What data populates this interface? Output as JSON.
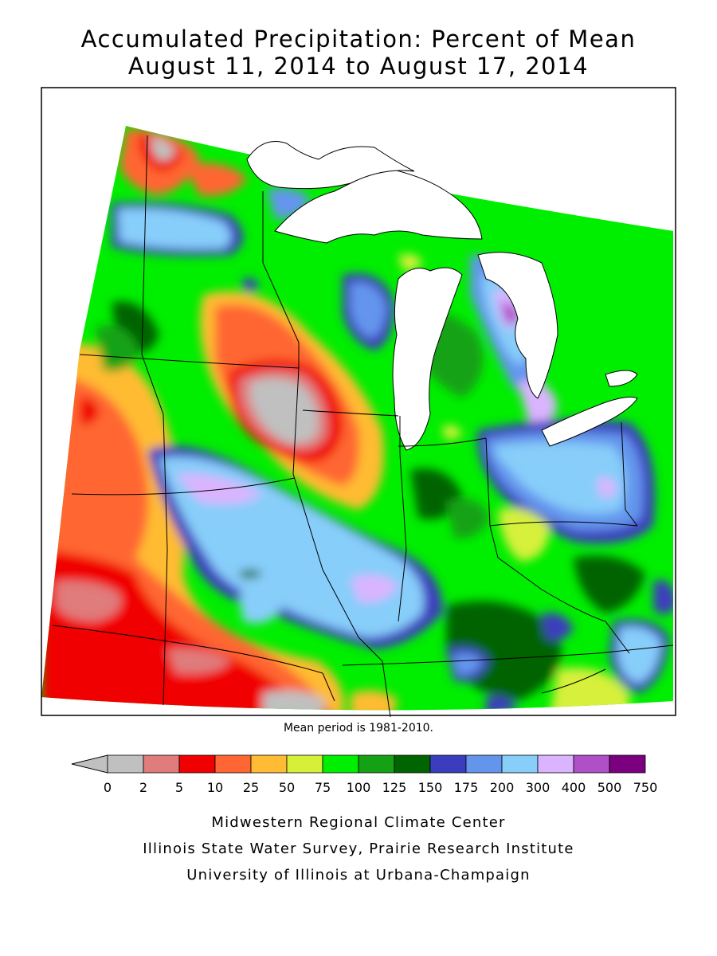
{
  "title": {
    "line1": "Accumulated Precipitation: Percent of Mean",
    "line2": "August 11, 2014 to August 17, 2014"
  },
  "mean_note": "Mean period is 1981-2010.",
  "legend": {
    "colors": [
      "#c0c0c0",
      "#e07c7c",
      "#f00000",
      "#ff6633",
      "#ffbb33",
      "#d6f03a",
      "#00ee00",
      "#14a214",
      "#006400",
      "#3c3cbe",
      "#6495ed",
      "#87cefa",
      "#dab4ff",
      "#b050c8",
      "#7a0080"
    ],
    "tick_labels": [
      "0",
      "2",
      "5",
      "10",
      "25",
      "50",
      "75",
      "100",
      "125",
      "150",
      "175",
      "200",
      "300",
      "400",
      "500",
      "750"
    ]
  },
  "credits": {
    "line1": "Midwestern Regional Climate Center",
    "line2": "Illinois State Water Survey, Prairie Research Institute",
    "line3": "University of Illinois at Urbana-Champaign"
  }
}
